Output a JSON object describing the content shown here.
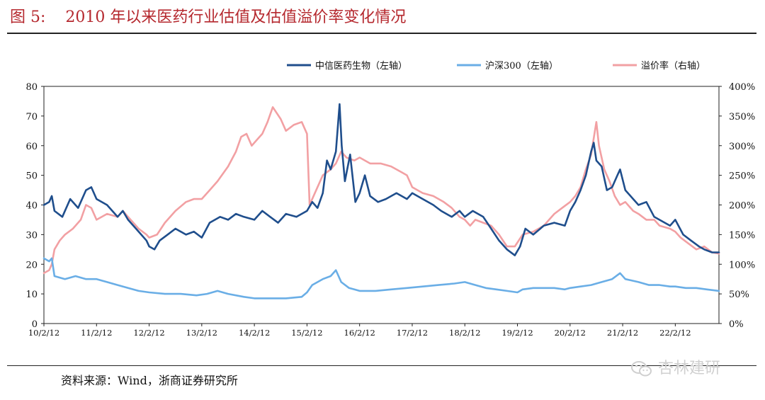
{
  "header": {
    "figure_label": "图 5:",
    "title": "2010 年以来医药行业估值及估值溢价率变化情况"
  },
  "footer": {
    "source": "资料来源：Wind，浙商证券研究所"
  },
  "watermark": {
    "text": "杏林建研",
    "icon": "wechat-icon"
  },
  "chart_data": {
    "type": "line",
    "title": "2010 年以来医药行业估值及估值溢价率变化情况",
    "xlabel": "",
    "ylabel_left": "",
    "ylabel_right": "",
    "x_ticks": [
      "10/2/12",
      "11/2/12",
      "12/2/12",
      "13/2/12",
      "14/2/12",
      "15/2/12",
      "16/2/12",
      "17/2/12",
      "18/2/12",
      "19/2/12",
      "20/2/12",
      "21/2/12",
      "22/2/12"
    ],
    "x_range": [
      2010.0,
      2022.83
    ],
    "y_left_ticks": [
      "0",
      "10",
      "20",
      "30",
      "40",
      "50",
      "60",
      "70",
      "80"
    ],
    "y_left_range": [
      0,
      80
    ],
    "y_right_ticks": [
      "0%",
      "50%",
      "100%",
      "150%",
      "200%",
      "250%",
      "300%",
      "350%",
      "400%"
    ],
    "y_right_range": [
      0,
      400
    ],
    "grid": false,
    "legend_position": "top",
    "series": [
      {
        "name": "中信医药生物（左轴）",
        "axis": "left",
        "color": "#1f4e8c",
        "points": [
          [
            2010.0,
            40
          ],
          [
            2010.1,
            41
          ],
          [
            2010.15,
            43
          ],
          [
            2010.2,
            38
          ],
          [
            2010.35,
            36
          ],
          [
            2010.5,
            42
          ],
          [
            2010.65,
            39
          ],
          [
            2010.8,
            45
          ],
          [
            2010.9,
            46
          ],
          [
            2011.0,
            42
          ],
          [
            2011.2,
            40
          ],
          [
            2011.4,
            36
          ],
          [
            2011.5,
            38
          ],
          [
            2011.6,
            35
          ],
          [
            2011.75,
            32
          ],
          [
            2011.85,
            30
          ],
          [
            2011.95,
            28
          ],
          [
            2012.0,
            26
          ],
          [
            2012.1,
            25
          ],
          [
            2012.2,
            28
          ],
          [
            2012.35,
            30
          ],
          [
            2012.5,
            32
          ],
          [
            2012.7,
            30
          ],
          [
            2012.85,
            31
          ],
          [
            2013.0,
            29
          ],
          [
            2013.15,
            34
          ],
          [
            2013.35,
            36
          ],
          [
            2013.5,
            35
          ],
          [
            2013.65,
            37
          ],
          [
            2013.8,
            36
          ],
          [
            2014.0,
            35
          ],
          [
            2014.15,
            38
          ],
          [
            2014.3,
            36
          ],
          [
            2014.45,
            34
          ],
          [
            2014.6,
            37
          ],
          [
            2014.8,
            36
          ],
          [
            2015.0,
            38
          ],
          [
            2015.1,
            41
          ],
          [
            2015.2,
            39
          ],
          [
            2015.3,
            44
          ],
          [
            2015.38,
            55
          ],
          [
            2015.45,
            52
          ],
          [
            2015.55,
            58
          ],
          [
            2015.62,
            74
          ],
          [
            2015.66,
            60
          ],
          [
            2015.72,
            48
          ],
          [
            2015.82,
            57
          ],
          [
            2015.92,
            41
          ],
          [
            2016.0,
            44
          ],
          [
            2016.1,
            50
          ],
          [
            2016.2,
            43
          ],
          [
            2016.35,
            41
          ],
          [
            2016.5,
            42
          ],
          [
            2016.7,
            44
          ],
          [
            2016.9,
            42
          ],
          [
            2017.0,
            44
          ],
          [
            2017.2,
            42
          ],
          [
            2017.4,
            40
          ],
          [
            2017.55,
            38
          ],
          [
            2017.75,
            36
          ],
          [
            2017.9,
            38
          ],
          [
            2018.0,
            36
          ],
          [
            2018.15,
            38
          ],
          [
            2018.35,
            36
          ],
          [
            2018.5,
            32
          ],
          [
            2018.65,
            28
          ],
          [
            2018.8,
            25
          ],
          [
            2018.95,
            23
          ],
          [
            2019.05,
            26
          ],
          [
            2019.15,
            32
          ],
          [
            2019.3,
            30
          ],
          [
            2019.5,
            33
          ],
          [
            2019.7,
            34
          ],
          [
            2019.9,
            33
          ],
          [
            2020.0,
            38
          ],
          [
            2020.1,
            41
          ],
          [
            2020.2,
            45
          ],
          [
            2020.3,
            50
          ],
          [
            2020.4,
            58
          ],
          [
            2020.45,
            61
          ],
          [
            2020.5,
            55
          ],
          [
            2020.6,
            53
          ],
          [
            2020.7,
            45
          ],
          [
            2020.8,
            46
          ],
          [
            2020.9,
            50
          ],
          [
            2020.95,
            52
          ],
          [
            2021.05,
            45
          ],
          [
            2021.2,
            42
          ],
          [
            2021.3,
            40
          ],
          [
            2021.45,
            41
          ],
          [
            2021.6,
            36
          ],
          [
            2021.8,
            34
          ],
          [
            2021.9,
            33
          ],
          [
            2022.0,
            35
          ],
          [
            2022.15,
            30
          ],
          [
            2022.3,
            28
          ],
          [
            2022.45,
            26
          ],
          [
            2022.55,
            25
          ],
          [
            2022.7,
            24
          ],
          [
            2022.83,
            24
          ]
        ]
      },
      {
        "name": "沪深300（左轴）",
        "axis": "left",
        "color": "#6aaee6",
        "points": [
          [
            2010.0,
            22
          ],
          [
            2010.1,
            21
          ],
          [
            2010.15,
            22
          ],
          [
            2010.2,
            16
          ],
          [
            2010.4,
            15
          ],
          [
            2010.6,
            16
          ],
          [
            2010.8,
            15
          ],
          [
            2011.0,
            15
          ],
          [
            2011.2,
            14
          ],
          [
            2011.4,
            13
          ],
          [
            2011.6,
            12
          ],
          [
            2011.8,
            11
          ],
          [
            2012.0,
            10.5
          ],
          [
            2012.3,
            10
          ],
          [
            2012.6,
            10
          ],
          [
            2012.9,
            9.5
          ],
          [
            2013.1,
            10
          ],
          [
            2013.3,
            11
          ],
          [
            2013.5,
            10
          ],
          [
            2013.8,
            9
          ],
          [
            2014.0,
            8.5
          ],
          [
            2014.3,
            8.5
          ],
          [
            2014.6,
            8.5
          ],
          [
            2014.9,
            9
          ],
          [
            2015.0,
            10.5
          ],
          [
            2015.1,
            13
          ],
          [
            2015.3,
            15
          ],
          [
            2015.45,
            16
          ],
          [
            2015.55,
            18
          ],
          [
            2015.65,
            14
          ],
          [
            2015.8,
            12
          ],
          [
            2015.9,
            11.5
          ],
          [
            2016.0,
            11
          ],
          [
            2016.3,
            11
          ],
          [
            2016.6,
            11.5
          ],
          [
            2016.9,
            12
          ],
          [
            2017.2,
            12.5
          ],
          [
            2017.5,
            13
          ],
          [
            2017.8,
            13.5
          ],
          [
            2018.0,
            14
          ],
          [
            2018.2,
            13
          ],
          [
            2018.4,
            12
          ],
          [
            2018.6,
            11.5
          ],
          [
            2018.8,
            11
          ],
          [
            2019.0,
            10.5
          ],
          [
            2019.1,
            11.5
          ],
          [
            2019.3,
            12
          ],
          [
            2019.5,
            12
          ],
          [
            2019.7,
            12
          ],
          [
            2019.9,
            11.5
          ],
          [
            2020.0,
            12
          ],
          [
            2020.2,
            12.5
          ],
          [
            2020.4,
            13
          ],
          [
            2020.6,
            14
          ],
          [
            2020.8,
            15
          ],
          [
            2020.95,
            17
          ],
          [
            2021.05,
            15
          ],
          [
            2021.3,
            14
          ],
          [
            2021.5,
            13
          ],
          [
            2021.7,
            13
          ],
          [
            2021.9,
            12.5
          ],
          [
            2022.0,
            12.5
          ],
          [
            2022.2,
            12
          ],
          [
            2022.4,
            12
          ],
          [
            2022.6,
            11.5
          ],
          [
            2022.83,
            11
          ]
        ]
      },
      {
        "name": "溢价率（右轴）",
        "axis": "right",
        "color": "#f2a0a3",
        "points": [
          [
            2010.0,
            85
          ],
          [
            2010.1,
            90
          ],
          [
            2010.15,
            100
          ],
          [
            2010.2,
            125
          ],
          [
            2010.3,
            140
          ],
          [
            2010.4,
            150
          ],
          [
            2010.55,
            160
          ],
          [
            2010.7,
            175
          ],
          [
            2010.8,
            200
          ],
          [
            2010.9,
            195
          ],
          [
            2011.0,
            175
          ],
          [
            2011.2,
            185
          ],
          [
            2011.4,
            180
          ],
          [
            2011.5,
            190
          ],
          [
            2011.6,
            180
          ],
          [
            2011.8,
            160
          ],
          [
            2011.95,
            150
          ],
          [
            2012.0,
            145
          ],
          [
            2012.15,
            150
          ],
          [
            2012.3,
            170
          ],
          [
            2012.5,
            190
          ],
          [
            2012.7,
            205
          ],
          [
            2012.85,
            210
          ],
          [
            2013.0,
            210
          ],
          [
            2013.15,
            225
          ],
          [
            2013.3,
            240
          ],
          [
            2013.5,
            265
          ],
          [
            2013.65,
            290
          ],
          [
            2013.75,
            315
          ],
          [
            2013.85,
            320
          ],
          [
            2013.95,
            300
          ],
          [
            2014.05,
            310
          ],
          [
            2014.15,
            320
          ],
          [
            2014.25,
            340
          ],
          [
            2014.35,
            365
          ],
          [
            2014.5,
            345
          ],
          [
            2014.6,
            325
          ],
          [
            2014.75,
            335
          ],
          [
            2014.9,
            340
          ],
          [
            2015.0,
            320
          ],
          [
            2015.05,
            200
          ],
          [
            2015.15,
            220
          ],
          [
            2015.3,
            250
          ],
          [
            2015.45,
            260
          ],
          [
            2015.55,
            270
          ],
          [
            2015.65,
            290
          ],
          [
            2015.75,
            280
          ],
          [
            2015.9,
            275
          ],
          [
            2016.0,
            280
          ],
          [
            2016.2,
            270
          ],
          [
            2016.4,
            270
          ],
          [
            2016.6,
            265
          ],
          [
            2016.8,
            255
          ],
          [
            2016.9,
            250
          ],
          [
            2017.0,
            230
          ],
          [
            2017.2,
            220
          ],
          [
            2017.4,
            215
          ],
          [
            2017.6,
            205
          ],
          [
            2017.75,
            195
          ],
          [
            2017.9,
            180
          ],
          [
            2018.0,
            175
          ],
          [
            2018.1,
            165
          ],
          [
            2018.2,
            175
          ],
          [
            2018.35,
            170
          ],
          [
            2018.5,
            165
          ],
          [
            2018.65,
            150
          ],
          [
            2018.8,
            130
          ],
          [
            2018.95,
            130
          ],
          [
            2019.1,
            150
          ],
          [
            2019.3,
            155
          ],
          [
            2019.5,
            165
          ],
          [
            2019.7,
            185
          ],
          [
            2019.85,
            195
          ],
          [
            2020.0,
            205
          ],
          [
            2020.1,
            215
          ],
          [
            2020.2,
            230
          ],
          [
            2020.3,
            260
          ],
          [
            2020.4,
            285
          ],
          [
            2020.5,
            340
          ],
          [
            2020.55,
            300
          ],
          [
            2020.65,
            260
          ],
          [
            2020.75,
            240
          ],
          [
            2020.85,
            215
          ],
          [
            2020.95,
            200
          ],
          [
            2021.05,
            205
          ],
          [
            2021.2,
            190
          ],
          [
            2021.3,
            185
          ],
          [
            2021.45,
            175
          ],
          [
            2021.6,
            175
          ],
          [
            2021.7,
            165
          ],
          [
            2021.9,
            160
          ],
          [
            2022.0,
            155
          ],
          [
            2022.1,
            145
          ],
          [
            2022.25,
            135
          ],
          [
            2022.4,
            125
          ],
          [
            2022.55,
            130
          ],
          [
            2022.7,
            120
          ],
          [
            2022.83,
            118
          ]
        ]
      }
    ]
  }
}
